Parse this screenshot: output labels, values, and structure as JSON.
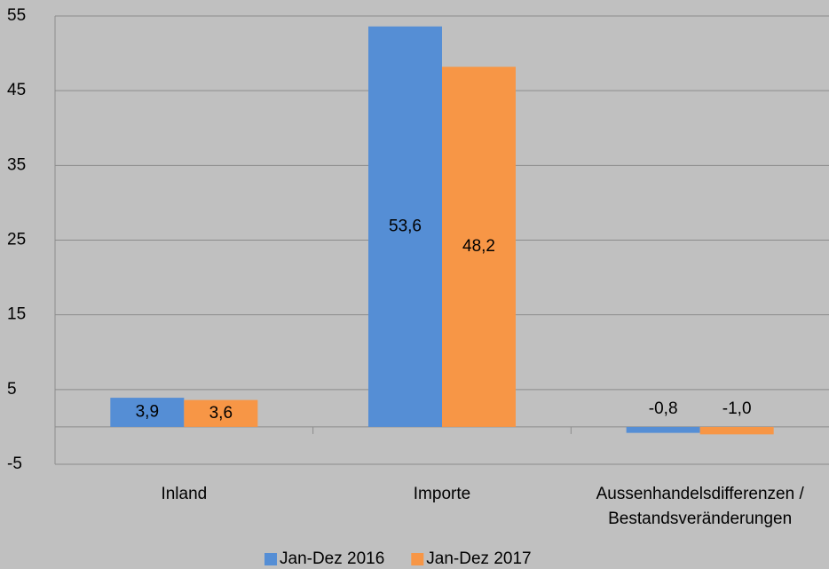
{
  "chart_data": {
    "type": "bar",
    "categories": [
      "Inland",
      "Importe",
      "Aussenhandelsdifferenzen / Bestandsveränderungen"
    ],
    "series": [
      {
        "name": "Jan-Dez 2016",
        "color": "#558ed5",
        "values": [
          3.9,
          53.6,
          -0.8
        ],
        "value_labels": [
          "3,9",
          "53,6",
          "-0,8"
        ]
      },
      {
        "name": "Jan-Dez 2017",
        "color": "#f79646",
        "values": [
          3.6,
          48.2,
          -1.0
        ],
        "value_labels": [
          "3,6",
          "48,2",
          "-1,0"
        ]
      }
    ],
    "ylim": [
      -5,
      55
    ],
    "yticks": [
      -5,
      5,
      15,
      25,
      35,
      45,
      55
    ],
    "grid": true,
    "legend": "bottom"
  }
}
